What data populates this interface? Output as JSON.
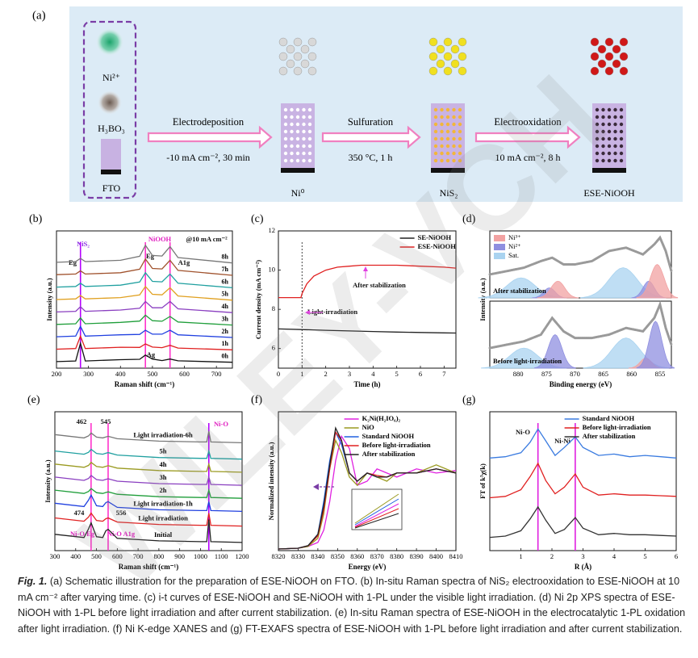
{
  "schematic": {
    "panel": "(a)",
    "reagents": [
      "Ni²⁺",
      "H₃BO₃",
      "FTO"
    ],
    "steps": [
      {
        "name": "Electrodeposition",
        "condition": "-10 mA cm⁻², 30 min"
      },
      {
        "name": "Sulfuration",
        "condition": "350 °C, 1 h"
      },
      {
        "name": "Electrooxidation",
        "condition": "10 mA cm⁻², 8 h"
      }
    ],
    "products": [
      "Ni⁰",
      "NiS₂",
      "ESE-NiOOH"
    ]
  },
  "watermark": "WILEY-VCH",
  "caption": {
    "label": "Fig. 1.",
    "text": "(a) Schematic illustration for the preparation of ESE-NiOOH on FTO. (b) In-situ Raman spectra of NiS₂ electrooxidation to ESE-NiOOH at 10 mA cm⁻² after varying time. (c) i-t curves of ESE-NiOOH and SE-NiOOH with 1-PL under the visible light irradiation. (d) Ni 2p XPS spectra of ESE-NiOOH with 1-PL before light irradiation and after current stabilization. (e) In-situ Raman spectra of ESE-NiOOH in the electrocatalytic 1-PL oxidation after light irradiation. (f) Ni K-edge XANES and (g) FT-EXAFS spectra of ESE-NiOOH with 1-PL before light irradiation and after current stabilization."
  },
  "chart_data": [
    {
      "type": "line",
      "panel": "(b)",
      "xlabel": "Raman shift (cm⁻¹)",
      "ylabel": "Intensity (a.u.)",
      "xlim": [
        200,
        750
      ],
      "xticks": [
        200,
        300,
        400,
        500,
        600,
        700
      ],
      "ylim": [
        0,
        10.5
      ],
      "legend": "inline-end",
      "annotations": [
        "NiS₂",
        "NiOOH",
        "@10 mA cm⁻²",
        "Eg",
        "Eg",
        "A1g",
        "Ag"
      ],
      "vlines": [
        {
          "x": 275,
          "color": "#b400ff"
        },
        {
          "x": 478,
          "color": "#ff33cc"
        },
        {
          "x": 555,
          "color": "#ff33cc"
        }
      ],
      "x": [
        200,
        260,
        275,
        290,
        400,
        460,
        478,
        500,
        530,
        555,
        580,
        750
      ],
      "series": [
        {
          "name": "0h",
          "color": "#111111",
          "values": [
            0.5,
            0.55,
            1.9,
            0.55,
            0.65,
            0.68,
            1.0,
            0.7,
            0.58,
            0.7,
            0.56,
            0.45
          ]
        },
        {
          "name": "1h",
          "color": "#e02020",
          "values": [
            1.45,
            1.5,
            2.45,
            1.5,
            1.6,
            1.59,
            1.85,
            1.61,
            1.57,
            1.75,
            1.54,
            1.4
          ]
        },
        {
          "name": "2h",
          "color": "#2040e0",
          "values": [
            2.4,
            2.45,
            3.2,
            2.45,
            2.55,
            2.58,
            2.9,
            2.6,
            2.6,
            2.9,
            2.55,
            2.35
          ]
        },
        {
          "name": "3h",
          "color": "#1f9e3a",
          "values": [
            3.35,
            3.4,
            3.85,
            3.4,
            3.5,
            3.6,
            4.05,
            3.63,
            3.59,
            3.95,
            3.53,
            3.3
          ]
        },
        {
          "name": "4h",
          "color": "#8a3fc0",
          "values": [
            4.3,
            4.35,
            4.7,
            4.35,
            4.45,
            4.58,
            5.1,
            4.62,
            4.62,
            5.1,
            4.54,
            4.25
          ]
        },
        {
          "name": "5h",
          "color": "#e0a020",
          "values": [
            5.25,
            5.3,
            5.55,
            5.3,
            5.4,
            5.6,
            6.25,
            5.65,
            5.61,
            6.15,
            5.52,
            5.2
          ]
        },
        {
          "name": "6h",
          "color": "#20a0a0",
          "values": [
            6.2,
            6.25,
            6.5,
            6.25,
            6.35,
            6.59,
            7.3,
            6.64,
            6.6,
            7.2,
            6.5,
            6.15
          ]
        },
        {
          "name": "7h",
          "color": "#a0522d",
          "values": [
            7.15,
            7.2,
            7.45,
            7.2,
            7.3,
            7.57,
            8.35,
            7.63,
            7.59,
            8.25,
            7.48,
            7.1
          ]
        },
        {
          "name": "8h",
          "color": "#777777",
          "values": [
            8.1,
            8.15,
            8.4,
            8.15,
            8.25,
            8.56,
            9.4,
            8.62,
            8.58,
            9.3,
            8.46,
            8.05
          ]
        }
      ]
    },
    {
      "type": "line",
      "panel": "(c)",
      "xlabel": "Time (h)",
      "ylabel": "Current density (mA cm⁻²)",
      "xlim": [
        0,
        7.5
      ],
      "xticks": [
        0,
        1,
        2,
        3,
        4,
        5,
        6,
        7
      ],
      "ylim": [
        5,
        12
      ],
      "yticks": [
        6,
        8,
        10,
        12
      ],
      "legend": "upper right",
      "annotations": [
        "After stabilization",
        "Light-irradiation"
      ],
      "vlines": [
        {
          "x": 1,
          "color": "#444444",
          "dash": true
        }
      ],
      "series": [
        {
          "name": "SE-NiOOH",
          "color": "#222222",
          "x": [
            0,
            1,
            2,
            3,
            4,
            5,
            6,
            7,
            7.5
          ],
          "values": [
            7.0,
            6.97,
            6.93,
            6.9,
            6.87,
            6.84,
            6.82,
            6.8,
            6.79
          ]
        },
        {
          "name": "ESE-NiOOH",
          "color": "#e02020",
          "x": [
            0,
            0.95,
            1,
            1.2,
            1.5,
            2,
            2.5,
            3,
            3.5,
            4,
            5,
            6,
            7,
            7.5
          ],
          "values": [
            8.6,
            8.6,
            8.8,
            9.3,
            9.7,
            10.0,
            10.15,
            10.2,
            10.25,
            10.25,
            10.25,
            10.2,
            10.15,
            10.1
          ]
        }
      ]
    },
    {
      "type": "xps",
      "panel": "(d)",
      "xlabel": "Binding energy (eV)",
      "ylabel": "Intensity (a.u.)",
      "xlim": [
        885,
        853
      ],
      "xticks": [
        880,
        875,
        870,
        865,
        860,
        855
      ],
      "ylim": [
        0,
        1
      ],
      "annotations": [
        "Ni 2p",
        "2p1/2",
        "2p3/2",
        "2p1/2",
        "2p3/2"
      ],
      "components": [
        {
          "name": "Ni³⁺",
          "color": "#f2a2a2"
        },
        {
          "name": "Ni²⁺",
          "color": "#8f8fe0"
        },
        {
          "name": "Sat.",
          "color": "#a9d3f0"
        }
      ],
      "x": [
        885,
        882,
        879,
        876,
        874,
        872,
        870,
        867,
        864,
        861,
        858,
        856,
        855,
        854,
        853
      ],
      "subplots": [
        {
          "label": "After stabilization",
          "values": [
            0.35,
            0.4,
            0.45,
            0.55,
            0.6,
            0.5,
            0.5,
            0.55,
            0.7,
            0.75,
            0.65,
            0.8,
            0.9,
            0.7,
            0.4
          ],
          "peaks": [
            {
              "component": 2,
              "center": 879.5,
              "height": 0.3,
              "width": 2.5
            },
            {
              "component": 1,
              "center": 874.5,
              "height": 0.15,
              "width": 1.0
            },
            {
              "component": 0,
              "center": 873,
              "height": 0.25,
              "width": 1.2
            },
            {
              "component": 2,
              "center": 861.5,
              "height": 0.45,
              "width": 2.5
            },
            {
              "component": 1,
              "center": 857,
              "height": 0.25,
              "width": 1.0
            },
            {
              "component": 0,
              "center": 855.5,
              "height": 0.5,
              "width": 1.2
            }
          ]
        },
        {
          "label": "Before light-irradiation",
          "values": [
            0.3,
            0.35,
            0.4,
            0.5,
            0.75,
            0.55,
            0.45,
            0.45,
            0.5,
            0.6,
            0.55,
            0.75,
            0.95,
            0.6,
            0.35
          ],
          "peaks": [
            {
              "component": 2,
              "center": 879,
              "height": 0.3,
              "width": 2.5
            },
            {
              "component": 1,
              "center": 873.5,
              "height": 0.5,
              "width": 1.2
            },
            {
              "component": 2,
              "center": 861,
              "height": 0.45,
              "width": 2.5
            },
            {
              "component": 0,
              "center": 857.5,
              "height": 0.15,
              "width": 1.0
            },
            {
              "component": 1,
              "center": 855.8,
              "height": 0.7,
              "width": 1.1
            }
          ]
        }
      ]
    },
    {
      "type": "line",
      "panel": "(e)",
      "xlabel": "Raman shift (cm⁻¹)",
      "ylabel": "Intensity (a.u.)",
      "xlim": [
        300,
        1200
      ],
      "xticks": [
        300,
        400,
        500,
        600,
        700,
        800,
        900,
        1000,
        1100,
        1200
      ],
      "ylim": [
        0,
        8.5
      ],
      "legend": "inline-middle",
      "annotations": [
        "462",
        "545",
        "474",
        "556",
        "Ni-O",
        "Ni-O Eg",
        "Ni-O A1g"
      ],
      "vlines": [
        {
          "x": 474,
          "color": "#ff33cc"
        },
        {
          "x": 556,
          "color": "#ff33cc"
        },
        {
          "x": 1040,
          "color": "#b400ff"
        }
      ],
      "x": [
        300,
        440,
        462,
        474,
        500,
        530,
        545,
        556,
        600,
        800,
        1000,
        1030,
        1040,
        1050,
        1200
      ],
      "series": [
        {
          "name": "Initial",
          "color": "#222222",
          "values": [
            1.0,
            0.8,
            1.34,
            1.7,
            0.85,
            0.8,
            1.22,
            1.3,
            0.75,
            0.6,
            0.55,
            0.55,
            1.9,
            0.55,
            0.5
          ]
        },
        {
          "name": "Light irradiation",
          "color": "#e02020",
          "values": [
            2.0,
            1.8,
            2.06,
            2.3,
            1.85,
            1.8,
            1.95,
            2.0,
            1.75,
            1.6,
            1.55,
            1.55,
            2.3,
            1.55,
            1.5
          ]
        },
        {
          "name": "Light irradiation-1h",
          "color": "#2040e0",
          "values": [
            2.9,
            2.7,
            3.1,
            3.4,
            2.75,
            2.7,
            2.94,
            3.0,
            2.65,
            2.5,
            2.45,
            2.45,
            3.0,
            2.45,
            2.4
          ]
        },
        {
          "name": "2h",
          "color": "#1f9e3a",
          "values": [
            3.7,
            3.5,
            3.62,
            3.8,
            3.55,
            3.5,
            3.56,
            3.6,
            3.45,
            3.3,
            3.25,
            3.25,
            3.7,
            3.25,
            3.2
          ]
        },
        {
          "name": "3h",
          "color": "#8a3fc0",
          "values": [
            4.5,
            4.3,
            4.42,
            4.6,
            4.35,
            4.3,
            4.36,
            4.4,
            4.25,
            4.1,
            4.05,
            4.05,
            4.5,
            4.05,
            4.0
          ]
        },
        {
          "name": "4h",
          "color": "#9a9a20",
          "values": [
            5.3,
            5.1,
            5.22,
            5.4,
            5.15,
            5.1,
            5.16,
            5.2,
            5.05,
            4.9,
            4.85,
            4.85,
            5.3,
            4.85,
            4.8
          ]
        },
        {
          "name": "5h",
          "color": "#20a0a0",
          "values": [
            6.1,
            5.9,
            6.02,
            6.2,
            5.95,
            5.9,
            5.96,
            6.0,
            5.85,
            5.7,
            5.65,
            5.65,
            6.1,
            5.65,
            5.6
          ]
        },
        {
          "name": "Light irradiation-6h",
          "color": "#777777",
          "values": [
            7.1,
            6.9,
            7.02,
            7.2,
            6.95,
            6.9,
            6.96,
            7.0,
            6.85,
            6.7,
            6.65,
            6.65,
            7.3,
            6.65,
            6.6
          ]
        }
      ]
    },
    {
      "type": "line",
      "panel": "(f)",
      "xlabel": "Energy (eV)",
      "ylabel": "Normalized intensity (a.u.)",
      "xlim": [
        8320,
        8410
      ],
      "xticks": [
        8320,
        8330,
        8340,
        8350,
        8360,
        8370,
        8380,
        8390,
        8400,
        8410
      ],
      "ylim": [
        0,
        1.7
      ],
      "legend": "upper right",
      "annotations": [],
      "x": [
        8320,
        8330,
        8335,
        8340,
        8343,
        8346,
        8349,
        8352,
        8356,
        8360,
        8365,
        8370,
        8375,
        8380,
        8390,
        8400,
        8410
      ],
      "series": [
        {
          "name": "K₂Ni(H₂IO₆)₂",
          "color": "#e020e0",
          "values": [
            0.02,
            0.03,
            0.05,
            0.1,
            0.25,
            0.6,
            1.1,
            1.4,
            1.25,
            0.8,
            0.85,
            1.0,
            0.95,
            0.9,
            1.0,
            0.95,
            0.98
          ]
        },
        {
          "name": "NiO",
          "color": "#9a9a20",
          "values": [
            0.02,
            0.03,
            0.05,
            0.15,
            0.45,
            1.0,
            1.35,
            1.2,
            0.9,
            0.8,
            0.95,
            0.9,
            0.85,
            0.95,
            0.95,
            1.05,
            0.95
          ]
        },
        {
          "name": "Standard NiOOH",
          "color": "#2060e0",
          "values": [
            0.02,
            0.03,
            0.06,
            0.2,
            0.6,
            1.1,
            1.45,
            1.3,
            0.95,
            0.85,
            0.95,
            0.9,
            0.9,
            0.95,
            0.95,
            1.0,
            0.95
          ]
        },
        {
          "name": "Before light-irradiation",
          "color": "#e02020",
          "values": [
            0.02,
            0.03,
            0.06,
            0.18,
            0.5,
            1.0,
            1.45,
            1.35,
            0.95,
            0.85,
            0.95,
            0.92,
            0.9,
            0.95,
            0.95,
            1.0,
            0.95
          ]
        },
        {
          "name": "After stabilization",
          "color": "#222222",
          "values": [
            0.02,
            0.03,
            0.06,
            0.2,
            0.55,
            1.05,
            1.5,
            1.35,
            0.95,
            0.85,
            0.95,
            0.9,
            0.9,
            0.95,
            0.95,
            1.0,
            0.95
          ]
        }
      ]
    },
    {
      "type": "line",
      "panel": "(g)",
      "xlabel": "R (Å)",
      "ylabel": "FT of k³χ(k)",
      "xlim": [
        0,
        6
      ],
      "xticks": [
        1,
        2,
        3,
        4,
        5,
        6
      ],
      "ylim": [
        0,
        10.5
      ],
      "legend": "upper right",
      "annotations": [
        "Ni-O",
        "Ni-Ni"
      ],
      "vlines": [
        {
          "x": 1.55,
          "color": "#e020e0"
        },
        {
          "x": 2.75,
          "color": "#e020e0"
        }
      ],
      "x": [
        0,
        0.5,
        1.0,
        1.3,
        1.55,
        1.8,
        2.1,
        2.4,
        2.75,
        3.0,
        3.5,
        4,
        4.5,
        5,
        5.5,
        6
      ],
      "series": [
        {
          "name": "Standard NiOOH",
          "color": "#3a7be0",
          "values": [
            7.0,
            7.1,
            7.4,
            8.2,
            9.2,
            8.3,
            7.2,
            7.8,
            8.6,
            7.8,
            7.2,
            7.3,
            7.1,
            7.2,
            7.1,
            7.0
          ]
        },
        {
          "name": "Before light-irradiation",
          "color": "#e02020",
          "values": [
            4.0,
            4.1,
            4.6,
            5.6,
            6.6,
            5.3,
            4.3,
            4.8,
            5.8,
            4.8,
            4.2,
            4.3,
            4.2,
            4.2,
            4.15,
            4.1
          ]
        },
        {
          "name": "After stabilization",
          "color": "#333333",
          "values": [
            1.0,
            1.1,
            1.5,
            2.4,
            3.3,
            2.3,
            1.3,
            1.6,
            2.5,
            1.7,
            1.2,
            1.3,
            1.2,
            1.2,
            1.15,
            1.1
          ]
        }
      ]
    }
  ]
}
